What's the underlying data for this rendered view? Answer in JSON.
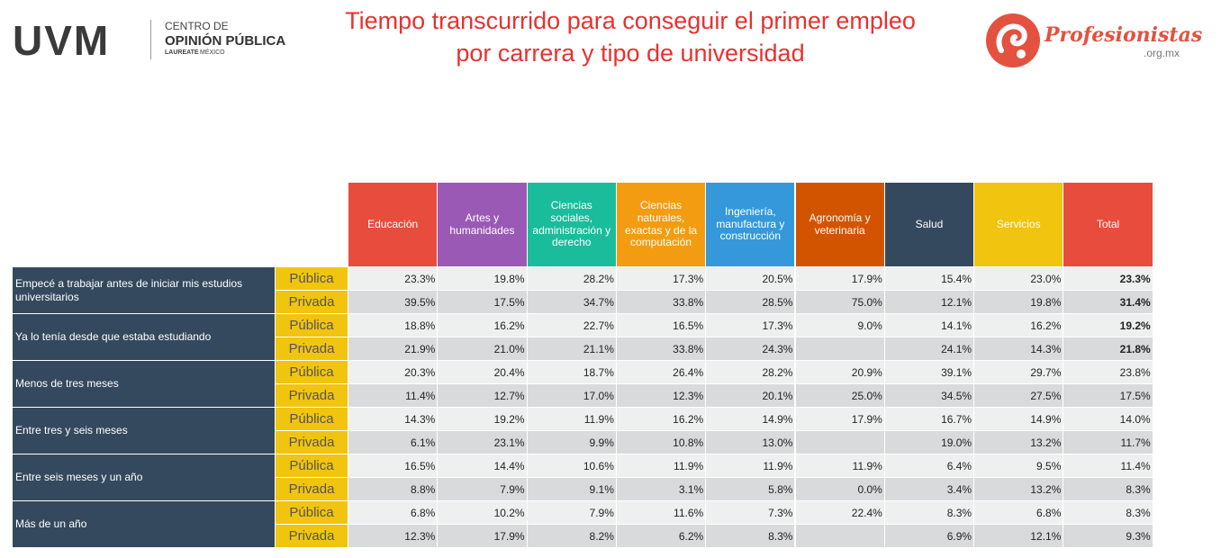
{
  "header": {
    "logo_left": {
      "brand": "UVM",
      "line1": "CENTRO DE",
      "line2": "OPINIÓN PÚBLICA",
      "line3": "LAUREATE",
      "line4": "MÉXICO"
    },
    "title_line1": "Tiempo transcurrido para conseguir el primer empleo",
    "title_line2": "por carrera y tipo de universidad",
    "logo_right": {
      "name": "Profesionistas",
      "domain": ".org.mx"
    }
  },
  "table": {
    "columns": [
      "Educación",
      "Artes y humanidades",
      "Ciencias sociales, administración y derecho",
      "Ciencias naturales, exactas y de la computación",
      "Ingeniería, manufactura y construcción",
      "Agronomía y veterinaria",
      "Salud",
      "Servicios",
      "Total"
    ],
    "groups": [
      {
        "label": "Empecé a trabajar antes de iniciar mis estudios universitarios",
        "rows": [
          {
            "type": "Pública",
            "cells": [
              "23.3%",
              "19.8%",
              "28.2%",
              "17.3%",
              "20.5%",
              "17.9%",
              "15.4%",
              "23.0%",
              "23.3%"
            ]
          },
          {
            "type": "Privada",
            "cells": [
              "39.5%",
              "17.5%",
              "34.7%",
              "33.8%",
              "28.5%",
              "75.0%",
              "12.1%",
              "19.8%",
              "31.4%"
            ]
          }
        ]
      },
      {
        "label": "Ya lo tenía desde que estaba estudiando",
        "rows": [
          {
            "type": "Pública",
            "cells": [
              "18.8%",
              "16.2%",
              "22.7%",
              "16.5%",
              "17.3%",
              "9.0%",
              "14.1%",
              "16.2%",
              "19.2%"
            ]
          },
          {
            "type": "Privada",
            "cells": [
              "21.9%",
              "21.0%",
              "21.1%",
              "33.8%",
              "24.3%",
              null,
              "24.1%",
              "14.3%",
              "21.8%"
            ]
          }
        ]
      },
      {
        "label": "Menos de tres meses",
        "rows": [
          {
            "type": "Pública",
            "cells": [
              "20.3%",
              "20.4%",
              "18.7%",
              "26.4%",
              "28.2%",
              "20.9%",
              "39.1%",
              "29.7%",
              "23.8%"
            ]
          },
          {
            "type": "Privada",
            "cells": [
              "11.4%",
              "12.7%",
              "17.0%",
              "12.3%",
              "20.1%",
              "25.0%",
              "34.5%",
              "27.5%",
              "17.5%"
            ]
          }
        ]
      },
      {
        "label": "Entre tres y seis meses",
        "rows": [
          {
            "type": "Pública",
            "cells": [
              "14.3%",
              "19.2%",
              "11.9%",
              "16.2%",
              "14.9%",
              "17.9%",
              "16.7%",
              "14.9%",
              "14.0%"
            ]
          },
          {
            "type": "Privada",
            "cells": [
              "6.1%",
              "23.1%",
              "9.9%",
              "10.8%",
              "13.0%",
              null,
              "19.0%",
              "13.2%",
              "11.7%"
            ]
          }
        ]
      },
      {
        "label": "Entre seis meses y un año",
        "rows": [
          {
            "type": "Pública",
            "cells": [
              "16.5%",
              "14.4%",
              "10.6%",
              "11.9%",
              "11.9%",
              "11.9%",
              "6.4%",
              "9.5%",
              "11.4%"
            ]
          },
          {
            "type": "Privada",
            "cells": [
              "8.8%",
              "7.9%",
              "9.1%",
              "3.1%",
              "5.8%",
              "0.0%",
              "3.4%",
              "13.2%",
              "8.3%"
            ]
          }
        ]
      },
      {
        "label": "Más de un año",
        "rows": [
          {
            "type": "Pública",
            "cells": [
              "6.8%",
              "10.2%",
              "7.9%",
              "11.6%",
              "7.3%",
              "22.4%",
              "8.3%",
              "6.8%",
              "8.3%"
            ]
          },
          {
            "type": "Privada",
            "cells": [
              "12.3%",
              "17.9%",
              "8.2%",
              "6.2%",
              "8.3%",
              null,
              "6.9%",
              "12.1%",
              "9.3%"
            ]
          }
        ]
      }
    ]
  }
}
